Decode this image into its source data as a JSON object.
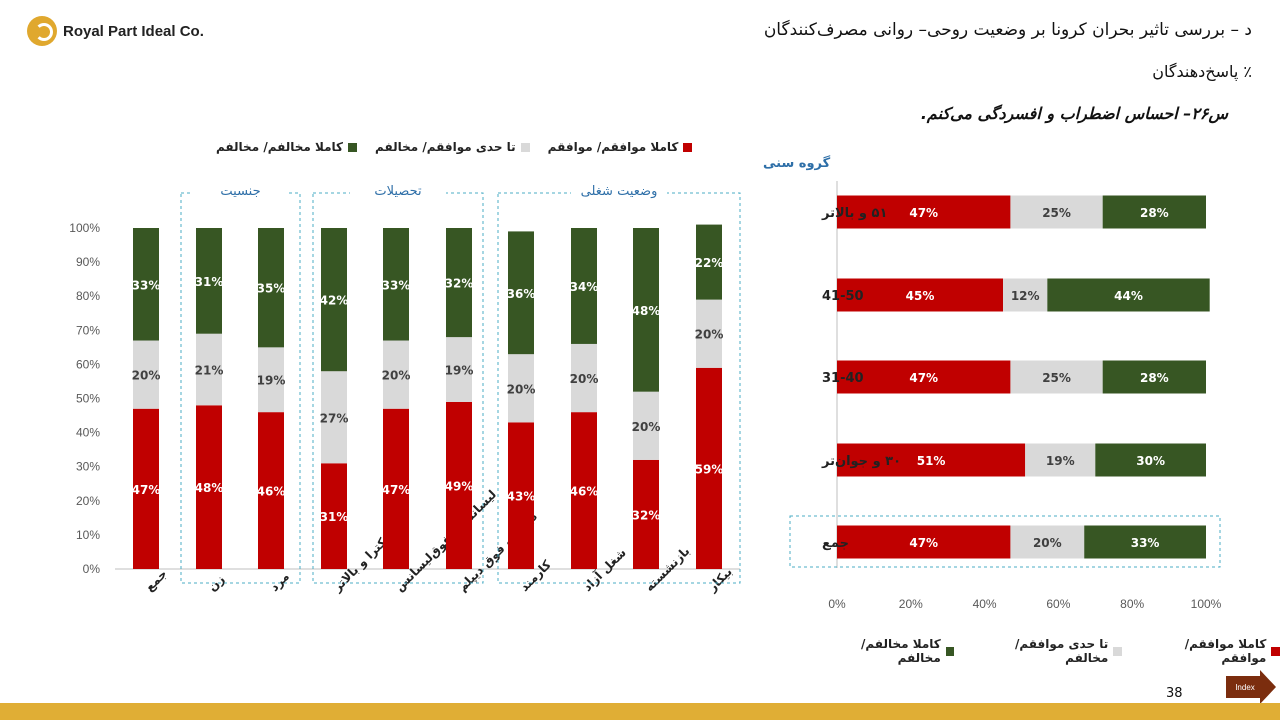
{
  "header": {
    "company": "Royal Part Ideal Co.",
    "title": "د – بررسی تاثیر بحران کرونا بر وضعیت روحی– روانی مصرف‌کنندگان",
    "subtitle": "٪ پاسخ‌دهندگان",
    "question": "س۲۶– احساس اضطراب و افسردگی می‌کنم."
  },
  "legend": {
    "items": [
      {
        "label": "کاملا موافقم/ موافقم",
        "color": "#c00000"
      },
      {
        "label": "تا حدی موافقم/ مخالفم",
        "color": "#d9d9d9"
      },
      {
        "label": "کاملا مخالفم/ مخالفم",
        "color": "#375623"
      }
    ]
  },
  "chart_data": [
    {
      "type": "bar",
      "stacked": true,
      "orientation": "vertical",
      "categories": [
        "جمع",
        "زن",
        "مرد",
        "دکترا و بالاتر",
        "لیسانس و فوق‌لیسانس",
        "دیپلم و فوق دیپلم",
        "کارمند",
        "شغل آزاد",
        "بازنشسته",
        "بیکار"
      ],
      "groups": [
        {
          "label": "جنسیت",
          "categories": [
            "زن",
            "مرد"
          ]
        },
        {
          "label": "تحصیلات",
          "categories": [
            "دکترا و بالاتر",
            "لیسانس و فوق‌لیسانس",
            "دیپلم و فوق دیپلم"
          ]
        },
        {
          "label": "وضعیت شغلی",
          "categories": [
            "کارمند",
            "شغل آزاد",
            "بازنشسته",
            "بیکار"
          ]
        }
      ],
      "series": [
        {
          "name": "کاملا موافقم/ موافقم",
          "values": [
            47,
            48,
            46,
            31,
            47,
            49,
            43,
            46,
            32,
            59
          ]
        },
        {
          "name": "تا حدی موافقم/ مخالفم",
          "values": [
            20,
            21,
            19,
            27,
            20,
            19,
            20,
            20,
            20,
            20
          ]
        },
        {
          "name": "کاملا مخالفم/ مخالفم",
          "values": [
            33,
            31,
            35,
            42,
            33,
            32,
            36,
            34,
            48,
            22
          ]
        }
      ],
      "yticks": [
        "0%",
        "10%",
        "20%",
        "30%",
        "40%",
        "50%",
        "60%",
        "70%",
        "80%",
        "90%",
        "100%"
      ],
      "ylim": [
        0,
        100
      ]
    },
    {
      "type": "bar",
      "stacked": true,
      "orientation": "horizontal",
      "group_label": "گروه سنی",
      "categories": [
        "۵۱ و بالاتر",
        "41-50",
        "31-40",
        "۳۰ و جوان‌تر",
        "جمع"
      ],
      "series": [
        {
          "name": "کاملا موافقم/ موافقم",
          "values": [
            47,
            45,
            47,
            51,
            47
          ]
        },
        {
          "name": "تا حدی موافقم/ مخالفم",
          "values": [
            25,
            12,
            25,
            19,
            20
          ]
        },
        {
          "name": "کاملا مخالفم/ مخالفم",
          "values": [
            28,
            44,
            28,
            30,
            33
          ]
        }
      ],
      "xticks": [
        "0%",
        "20%",
        "40%",
        "60%",
        "80%",
        "100%"
      ],
      "xlim": [
        0,
        100
      ]
    }
  ],
  "footer": {
    "page_number": "38",
    "index_label": "Index"
  }
}
